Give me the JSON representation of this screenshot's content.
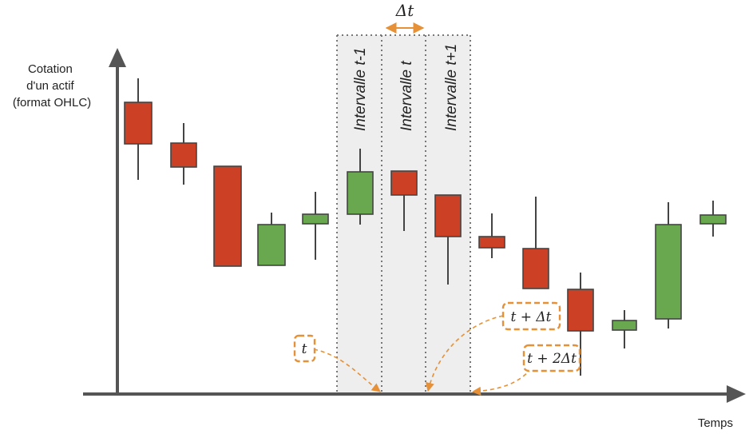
{
  "labels": {
    "y_axis": [
      "Cotation",
      "d'un actif",
      "(format OHLC)"
    ],
    "x_axis": "Temps",
    "delta": "Δt",
    "intervals": [
      "Intervalle t-1",
      "Intervalle t",
      "Intervalle t+1"
    ],
    "callouts": {
      "t": "t",
      "t_plus_dt": "t + Δt",
      "t_plus_2dt": "t + 2Δt"
    }
  },
  "colors": {
    "up": "#6aa84f",
    "down": "#cc4125",
    "accent": "#e69138",
    "axis": "#555555",
    "band": "#eeeeee"
  },
  "candles": [
    {
      "dir": "down"
    },
    {
      "dir": "down"
    },
    {
      "dir": "down"
    },
    {
      "dir": "up"
    },
    {
      "dir": "up"
    },
    {
      "dir": "up"
    },
    {
      "dir": "down"
    },
    {
      "dir": "down"
    },
    {
      "dir": "down"
    },
    {
      "dir": "down"
    },
    {
      "dir": "down"
    },
    {
      "dir": "up"
    },
    {
      "dir": "up"
    },
    {
      "dir": "up"
    }
  ]
}
